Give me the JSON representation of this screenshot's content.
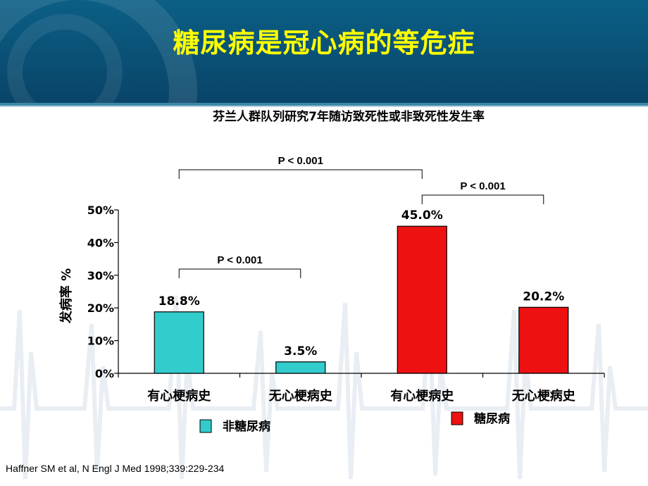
{
  "slide": {
    "title": "糖尿病是冠心病的等危症",
    "citation": "Haffner SM et al, N Engl J Med 1998;339:229-234"
  },
  "colors": {
    "header": "#0a5a80",
    "title_text": "#ffff00",
    "non_diabetes": "#33cccc",
    "diabetes": "#ee1111"
  },
  "chart_data": {
    "type": "bar",
    "title": "芬兰人群队列研究7年随访致死性或非致死性发生率",
    "ylabel": "发病率 %",
    "ylim": [
      0,
      50
    ],
    "yticks": [
      "0%",
      "10%",
      "20%",
      "30%",
      "40%",
      "50%"
    ],
    "categories": [
      "有心梗病史",
      "无心梗病史",
      "有心梗病史",
      "无心梗病史"
    ],
    "bars": [
      {
        "category": "有心梗病史",
        "group": "非糖尿病",
        "value": 18.8,
        "label": "18.8%"
      },
      {
        "category": "无心梗病史",
        "group": "非糖尿病",
        "value": 3.5,
        "label": "3.5%"
      },
      {
        "category": "有心梗病史",
        "group": "糖尿病",
        "value": 45.0,
        "label": "45.0%"
      },
      {
        "category": "无心梗病史",
        "group": "糖尿病",
        "value": 20.2,
        "label": "20.2%"
      }
    ],
    "legend": [
      {
        "name": "非糖尿病",
        "color": "#33cccc"
      },
      {
        "name": "糖尿病",
        "color": "#ee1111"
      }
    ],
    "comparisons": [
      {
        "from": 0,
        "to": 1,
        "label": "P < 0.001"
      },
      {
        "from": 0,
        "to": 2,
        "label": "P < 0.001"
      },
      {
        "from": 2,
        "to": 3,
        "label": "P < 0.001"
      }
    ],
    "grid": false
  }
}
